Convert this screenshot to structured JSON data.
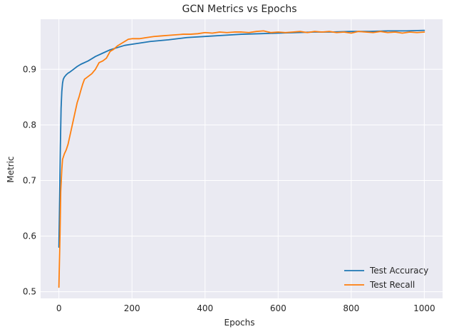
{
  "chart_data": {
    "type": "line",
    "title": "GCN Metrics vs Epochs",
    "xlabel": "Epochs",
    "ylabel": "Metric",
    "xlim": [
      -50,
      1050
    ],
    "ylim": [
      0.488,
      0.99
    ],
    "xticks": [
      0,
      200,
      400,
      600,
      800,
      1000
    ],
    "xtick_labels": [
      "0",
      "200",
      "400",
      "600",
      "800",
      "1000"
    ],
    "yticks": [
      0.5,
      0.6,
      0.7,
      0.8,
      0.9
    ],
    "ytick_labels": [
      "0.5",
      "0.6",
      "0.7",
      "0.8",
      "0.9"
    ],
    "grid": true,
    "legend_position": "lower-right",
    "series": [
      {
        "name": "Test Accuracy",
        "color": "#1f77b4",
        "x": [
          0,
          2,
          4,
          6,
          8,
          10,
          12,
          15,
          20,
          25,
          30,
          40,
          50,
          60,
          80,
          100,
          120,
          140,
          160,
          180,
          200,
          250,
          300,
          350,
          400,
          450,
          500,
          550,
          600,
          650,
          700,
          750,
          800,
          850,
          900,
          950,
          1000
        ],
        "values": [
          0.58,
          0.67,
          0.76,
          0.83,
          0.86,
          0.875,
          0.882,
          0.886,
          0.89,
          0.893,
          0.895,
          0.9,
          0.905,
          0.909,
          0.915,
          0.923,
          0.929,
          0.935,
          0.939,
          0.943,
          0.945,
          0.95,
          0.953,
          0.957,
          0.959,
          0.961,
          0.963,
          0.964,
          0.965,
          0.966,
          0.967,
          0.967,
          0.968,
          0.968,
          0.969,
          0.969,
          0.97
        ]
      },
      {
        "name": "Test Recall",
        "color": "#ff7f0e",
        "x": [
          0,
          3,
          5,
          8,
          10,
          15,
          20,
          25,
          30,
          35,
          40,
          45,
          50,
          55,
          60,
          65,
          70,
          80,
          90,
          100,
          110,
          120,
          130,
          140,
          150,
          160,
          170,
          180,
          190,
          200,
          220,
          240,
          260,
          280,
          300,
          320,
          340,
          360,
          380,
          400,
          420,
          440,
          460,
          480,
          500,
          520,
          540,
          560,
          580,
          600,
          620,
          640,
          660,
          680,
          700,
          720,
          740,
          760,
          780,
          800,
          820,
          840,
          860,
          880,
          900,
          920,
          940,
          960,
          980,
          1000
        ],
        "values": [
          0.508,
          0.6,
          0.68,
          0.72,
          0.738,
          0.748,
          0.755,
          0.765,
          0.78,
          0.795,
          0.81,
          0.825,
          0.84,
          0.85,
          0.862,
          0.873,
          0.882,
          0.887,
          0.892,
          0.9,
          0.912,
          0.915,
          0.92,
          0.932,
          0.936,
          0.942,
          0.946,
          0.95,
          0.954,
          0.955,
          0.955,
          0.957,
          0.959,
          0.96,
          0.961,
          0.962,
          0.963,
          0.963,
          0.964,
          0.966,
          0.965,
          0.967,
          0.966,
          0.967,
          0.967,
          0.966,
          0.968,
          0.969,
          0.966,
          0.967,
          0.966,
          0.967,
          0.968,
          0.966,
          0.968,
          0.967,
          0.968,
          0.966,
          0.967,
          0.965,
          0.968,
          0.967,
          0.966,
          0.968,
          0.966,
          0.967,
          0.965,
          0.967,
          0.966,
          0.967
        ]
      }
    ]
  }
}
